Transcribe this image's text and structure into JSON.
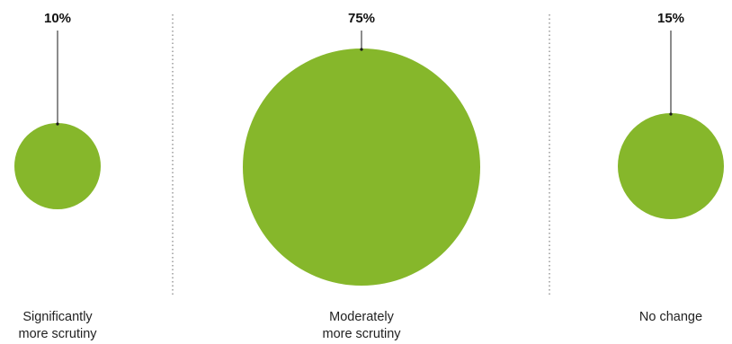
{
  "chart_data": {
    "type": "bubble",
    "categories": [
      [
        "Significantly",
        "more scrutiny"
      ],
      [
        "Moderately",
        "more scrutiny"
      ],
      [
        "No change"
      ]
    ],
    "values": [
      10,
      75,
      15
    ],
    "value_labels": [
      "10%",
      "75%",
      "15%"
    ],
    "unit": "%",
    "title": "",
    "grid": false,
    "legend": "none",
    "separators": "dotted vertical lines between categories"
  },
  "colors": {
    "bubble": "#86b72b",
    "leader_line": "#1a1a1a",
    "separator": "#8a8a8a"
  }
}
